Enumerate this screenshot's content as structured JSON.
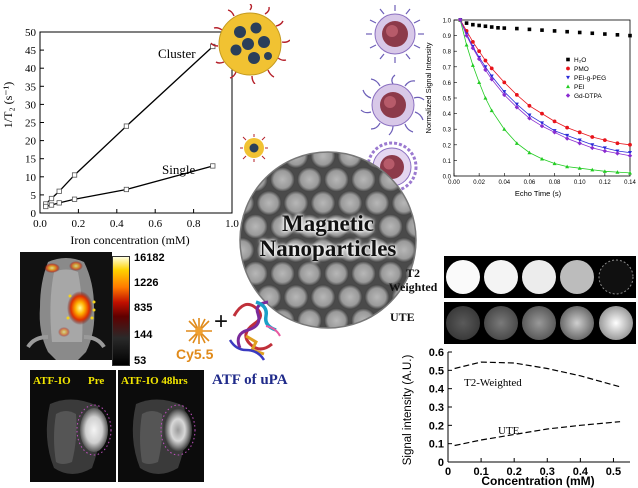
{
  "colors": {
    "cluster_line": "#000000",
    "h2o": "#000000",
    "pmo": "#e8141b",
    "peg": "#2a2ad8",
    "pei": "#22cc22",
    "gd": "#8a2bd0",
    "cy55": "#e08a1a",
    "atf_text": "#1f2a8a"
  },
  "chart_relax": {
    "type": "line",
    "ylabel": "1/T₂ (s⁻¹)",
    "xlabel": "Iron concentration (mM)",
    "xlim": [
      0,
      1.0
    ],
    "ylim": [
      0,
      50
    ],
    "xticks": [
      "0.0",
      "0.2",
      "0.4",
      "0.6",
      "0.8",
      "1.0"
    ],
    "yticks": [
      "0",
      "5",
      "10",
      "15",
      "20",
      "25",
      "30",
      "35",
      "40",
      "45",
      "50"
    ],
    "series": [
      {
        "name": "Cluster",
        "x": [
          0.03,
          0.06,
          0.1,
          0.18,
          0.45,
          0.9
        ],
        "y": [
          2.5,
          4.0,
          6.0,
          10.5,
          24.0,
          46.0
        ]
      },
      {
        "name": "Single",
        "x": [
          0.03,
          0.06,
          0.1,
          0.18,
          0.45,
          0.9
        ],
        "y": [
          1.8,
          2.2,
          2.8,
          3.8,
          6.5,
          13.0
        ]
      }
    ]
  },
  "chart_signal": {
    "type": "scatter",
    "ylabel": "Normalized Signal Intensity",
    "xlabel": "Echo Time (s)",
    "xlim": [
      0.0,
      0.14
    ],
    "ylim": [
      0.0,
      1.0
    ],
    "xticks": [
      "0.00",
      "0.02",
      "0.04",
      "0.06",
      "0.08",
      "0.10",
      "0.12",
      "0.14"
    ],
    "yticks": [
      "0.0",
      "0.1",
      "0.2",
      "0.3",
      "0.4",
      "0.5",
      "0.6",
      "0.7",
      "0.8",
      "0.9",
      "1.0"
    ],
    "legend": [
      "H₂O",
      "PMO",
      "PEI-g-PEG",
      "PEI",
      "Gd-DTPA"
    ],
    "series": [
      {
        "name": "H₂O",
        "x": [
          0.005,
          0.01,
          0.015,
          0.02,
          0.025,
          0.03,
          0.035,
          0.04,
          0.05,
          0.06,
          0.07,
          0.08,
          0.09,
          0.1,
          0.11,
          0.12,
          0.13,
          0.14
        ],
        "y": [
          1.0,
          0.98,
          0.97,
          0.965,
          0.96,
          0.955,
          0.95,
          0.948,
          0.945,
          0.94,
          0.935,
          0.93,
          0.925,
          0.92,
          0.915,
          0.91,
          0.905,
          0.9
        ]
      },
      {
        "name": "PMO",
        "x": [
          0.005,
          0.01,
          0.015,
          0.02,
          0.025,
          0.03,
          0.04,
          0.05,
          0.06,
          0.07,
          0.08,
          0.09,
          0.1,
          0.11,
          0.12,
          0.13,
          0.14
        ],
        "y": [
          1.0,
          0.93,
          0.86,
          0.8,
          0.74,
          0.69,
          0.6,
          0.52,
          0.45,
          0.4,
          0.35,
          0.31,
          0.28,
          0.25,
          0.23,
          0.21,
          0.2
        ]
      },
      {
        "name": "PEI-g-PEG",
        "x": [
          0.005,
          0.01,
          0.015,
          0.02,
          0.025,
          0.03,
          0.04,
          0.05,
          0.06,
          0.07,
          0.08,
          0.09,
          0.1,
          0.11,
          0.12,
          0.13,
          0.14
        ],
        "y": [
          1.0,
          0.91,
          0.83,
          0.76,
          0.7,
          0.64,
          0.54,
          0.46,
          0.39,
          0.34,
          0.29,
          0.26,
          0.23,
          0.2,
          0.18,
          0.16,
          0.15
        ]
      },
      {
        "name": "PEI",
        "x": [
          0.005,
          0.01,
          0.015,
          0.02,
          0.025,
          0.03,
          0.04,
          0.05,
          0.06,
          0.07,
          0.08,
          0.09,
          0.1,
          0.11,
          0.12,
          0.13,
          0.14
        ],
        "y": [
          1.0,
          0.84,
          0.71,
          0.6,
          0.5,
          0.42,
          0.3,
          0.21,
          0.15,
          0.11,
          0.08,
          0.06,
          0.05,
          0.04,
          0.03,
          0.025,
          0.02
        ]
      },
      {
        "name": "Gd-DTPA",
        "x": [
          0.005,
          0.01,
          0.015,
          0.02,
          0.025,
          0.03,
          0.04,
          0.05,
          0.06,
          0.07,
          0.08,
          0.09,
          0.1,
          0.11,
          0.12,
          0.13,
          0.14
        ],
        "y": [
          1.0,
          0.9,
          0.82,
          0.75,
          0.68,
          0.62,
          0.52,
          0.44,
          0.37,
          0.32,
          0.28,
          0.24,
          0.21,
          0.18,
          0.16,
          0.145,
          0.13
        ]
      }
    ]
  },
  "chart_conc": {
    "type": "line",
    "ylabel": "Signal intensity (A.U.)",
    "xlabel": "Concentration (mM)",
    "xlim": [
      0,
      0.55
    ],
    "ylim": [
      0,
      0.6
    ],
    "xticks": [
      "0",
      "0.1",
      "0.2",
      "0.3",
      "0.4",
      "0.5"
    ],
    "yticks": [
      "0",
      "0.1",
      "0.2",
      "0.3",
      "0.4",
      "0.5",
      "0.6"
    ],
    "series": [
      {
        "name": "T2-Weighted",
        "x": [
          0.02,
          0.1,
          0.2,
          0.3,
          0.4,
          0.52
        ],
        "y": [
          0.51,
          0.545,
          0.54,
          0.51,
          0.47,
          0.41
        ]
      },
      {
        "name": "UTE",
        "x": [
          0.02,
          0.1,
          0.2,
          0.3,
          0.4,
          0.52
        ],
        "y": [
          0.09,
          0.12,
          0.15,
          0.18,
          0.2,
          0.22
        ]
      }
    ]
  },
  "center": {
    "line1": "Magnetic",
    "line2": "Nanoparticles"
  },
  "colorbar": {
    "ticks": [
      "16182",
      "1226",
      "835",
      "144",
      "53"
    ]
  },
  "labels": {
    "cy55": "Cy5.5",
    "plus": "+",
    "atf": "ATF of uPA",
    "mri_pre_a": "ATF-IO",
    "mri_pre_b": "Pre",
    "mri_post": "ATF-IO 48hrs",
    "t2_weighted": "T2\nWeighted",
    "ute": "UTE"
  }
}
